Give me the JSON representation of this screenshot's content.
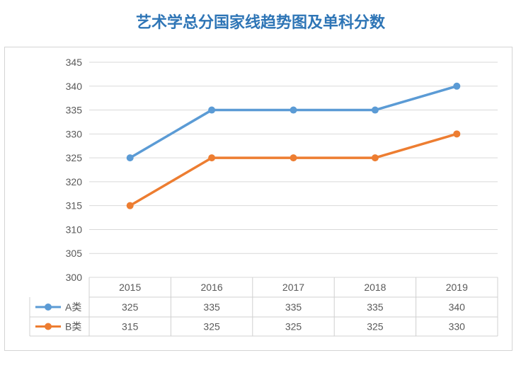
{
  "title": "艺术学总分国家线趋势图及单科分数",
  "chart_data": {
    "type": "line",
    "title": "艺术学总分国家线趋势图及单科分数",
    "categories": [
      "2015",
      "2016",
      "2017",
      "2018",
      "2019"
    ],
    "ylim": [
      300,
      345
    ],
    "ytick_step": 5,
    "grid": true,
    "legend": "data-table",
    "series": [
      {
        "name": "A类",
        "values": [
          325,
          335,
          335,
          335,
          340
        ],
        "color": "#5b9bd5"
      },
      {
        "name": "B类",
        "values": [
          315,
          325,
          325,
          325,
          330
        ],
        "color": "#ed7d31"
      }
    ]
  }
}
